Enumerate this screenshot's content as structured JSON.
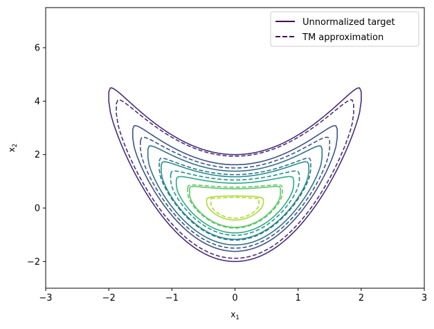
{
  "chart_data": {
    "type": "contour",
    "xlabel": "x",
    "xlabel_sub": "1",
    "ylabel": "x",
    "ylabel_sub": "2",
    "xlim": [
      -3,
      3
    ],
    "ylim": [
      -3,
      7.5
    ],
    "xticks": [
      -3,
      -2,
      -1,
      0,
      1,
      2,
      3
    ],
    "xtick_labels": [
      "−3",
      "−2",
      "−1",
      "0",
      "1",
      "2",
      "3"
    ],
    "yticks": [
      -2,
      0,
      2,
      4,
      6
    ],
    "ytick_labels": [
      "−2",
      "0",
      "2",
      "4",
      "6"
    ],
    "legend": {
      "position": "top-right",
      "entries": [
        {
          "label": "Unnormalized target",
          "style": "solid",
          "color": "#440154"
        },
        {
          "label": "TM approximation",
          "style": "dashed",
          "color": "#440154"
        }
      ]
    },
    "grid": false,
    "series": [
      {
        "name": "Unnormalized target",
        "style": "solid",
        "levels": [
          {
            "color": "#472c7a",
            "half_width": 2.0,
            "ybottom": -2.0,
            "ytop": 2.0,
            "tip_height": 4.35
          },
          {
            "color": "#3b528b",
            "half_width": 1.62,
            "ybottom": -1.62,
            "ytop": 1.62,
            "tip_height": 2.95
          },
          {
            "color": "#2c718e",
            "half_width": 1.38,
            "ybottom": -1.38,
            "ytop": 1.38,
            "tip_height": 2.2
          },
          {
            "color": "#21908d",
            "half_width": 1.17,
            "ybottom": -1.17,
            "ytop": 1.17,
            "tip_height": 1.6
          },
          {
            "color": "#27ad81",
            "half_width": 0.93,
            "ybottom": -0.93,
            "ytop": 0.93,
            "tip_height": 1.05
          },
          {
            "color": "#5cc863",
            "half_width": 0.72,
            "ybottom": -0.72,
            "ytop": 0.72,
            "tip_height": 0.72
          },
          {
            "color": "#aadc32",
            "half_width": 0.45,
            "ybottom": -0.45,
            "ytop": 0.45,
            "tip_height": 0.3
          }
        ]
      },
      {
        "name": "TM approximation",
        "style": "dashed",
        "levels": [
          {
            "color": "#472c7a",
            "half_width": 1.88,
            "ybottom": -1.88,
            "ytop": 1.94,
            "tip_height": 3.9
          },
          {
            "color": "#3b528b",
            "half_width": 1.5,
            "ybottom": -1.5,
            "ytop": 1.5,
            "tip_height": 2.5
          },
          {
            "color": "#2c718e",
            "half_width": 1.2,
            "ybottom": -1.2,
            "ytop": 1.25,
            "tip_height": 1.75
          },
          {
            "color": "#21908d",
            "half_width": 1.02,
            "ybottom": -1.02,
            "ytop": 1.05,
            "tip_height": 1.25
          },
          {
            "color": "#5cc863",
            "half_width": 0.75,
            "ybottom": -0.75,
            "ytop": 0.78,
            "tip_height": 0.75
          },
          {
            "color": "#aadc32",
            "half_width": 0.38,
            "ybottom": -0.38,
            "ytop": 0.4,
            "tip_height": 0.35
          }
        ]
      }
    ]
  }
}
